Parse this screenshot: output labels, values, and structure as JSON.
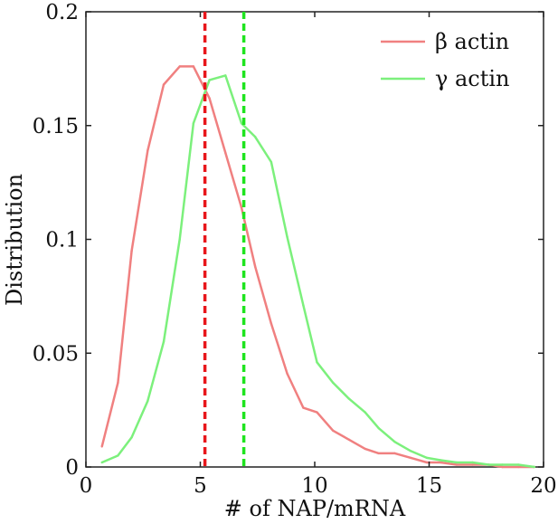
{
  "chart_data": {
    "type": "line",
    "title": "",
    "xlabel": "# of NAP/mRNA",
    "ylabel": "Distribution",
    "xlim": [
      0,
      20
    ],
    "ylim": [
      0,
      0.2
    ],
    "x_ticks": [
      0,
      5,
      10,
      15,
      20
    ],
    "x_tick_labels": [
      "0",
      "5",
      "10",
      "15",
      "20"
    ],
    "y_ticks": [
      0,
      0.05,
      0.1,
      0.15,
      0.2
    ],
    "y_tick_labels": [
      "0",
      "0.05",
      "0.1",
      "0.15",
      "0.2"
    ],
    "grid": false,
    "legend_position": "top-right",
    "series": [
      {
        "name": "β actin",
        "color": "#f08080",
        "x": [
          0.7,
          1.4,
          2.0,
          2.7,
          3.4,
          4.1,
          4.7,
          5.4,
          6.1,
          6.8,
          7.4,
          8.1,
          8.8,
          9.5,
          10.1,
          10.8,
          11.5,
          12.2,
          12.8,
          13.5,
          14.2,
          14.9,
          15.5,
          16.2,
          16.9,
          17.6,
          18.2,
          18.9,
          19.6
        ],
        "values": [
          0.009,
          0.037,
          0.095,
          0.139,
          0.168,
          0.176,
          0.176,
          0.162,
          0.138,
          0.114,
          0.088,
          0.063,
          0.041,
          0.026,
          0.024,
          0.016,
          0.012,
          0.008,
          0.006,
          0.006,
          0.004,
          0.002,
          0.002,
          0.001,
          0.001,
          0.001,
          0.0,
          0.0,
          0.0
        ]
      },
      {
        "name": "γ actin",
        "color": "#7cf07c",
        "x": [
          0.7,
          1.4,
          2.0,
          2.7,
          3.4,
          4.1,
          4.7,
          5.4,
          6.1,
          6.8,
          7.4,
          8.1,
          8.8,
          9.5,
          10.1,
          10.8,
          11.5,
          12.2,
          12.8,
          13.5,
          14.2,
          14.9,
          15.5,
          16.2,
          16.9,
          17.6,
          18.2,
          18.9,
          19.6
        ],
        "values": [
          0.002,
          0.005,
          0.013,
          0.029,
          0.055,
          0.1,
          0.151,
          0.17,
          0.172,
          0.151,
          0.145,
          0.134,
          0.101,
          0.071,
          0.046,
          0.037,
          0.03,
          0.024,
          0.017,
          0.011,
          0.007,
          0.004,
          0.003,
          0.002,
          0.002,
          0.001,
          0.001,
          0.001,
          0.0
        ]
      }
    ],
    "reference_lines": [
      {
        "x": 5.2,
        "color": "#e8161b",
        "style": "dashed"
      },
      {
        "x": 6.9,
        "color": "#1fe41f",
        "style": "dashed"
      }
    ]
  }
}
